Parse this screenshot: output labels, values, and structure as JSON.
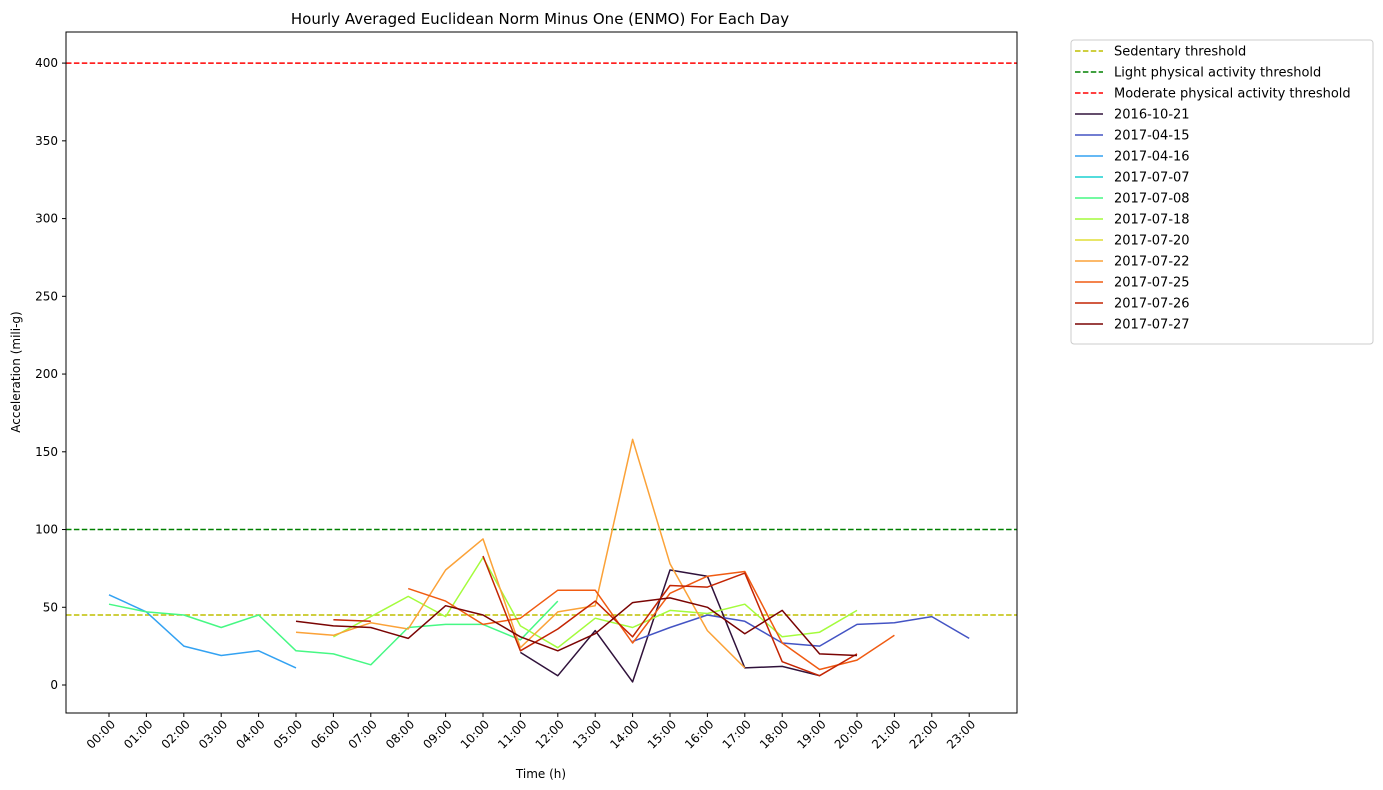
{
  "chart_data": {
    "type": "line",
    "title": "Hourly Averaged Euclidean Norm Minus One (ENMO) For Each Day",
    "xlabel": "Time (h)",
    "ylabel": "Acceleration (mili-g)",
    "ylim": [
      -18,
      420
    ],
    "yticks": [
      0,
      50,
      100,
      150,
      200,
      250,
      300,
      350,
      400
    ],
    "categories": [
      "00:00",
      "01:00",
      "02:00",
      "03:00",
      "04:00",
      "05:00",
      "06:00",
      "07:00",
      "08:00",
      "09:00",
      "10:00",
      "11:00",
      "12:00",
      "13:00",
      "14:00",
      "15:00",
      "16:00",
      "17:00",
      "18:00",
      "19:00",
      "20:00",
      "21:00",
      "22:00",
      "23:00"
    ],
    "grid": false,
    "legend_position": "outside-top-right",
    "thresholds": [
      {
        "name": "Sedentary threshold",
        "value": 45,
        "color": "#bfbf00"
      },
      {
        "name": "Light physical activity threshold",
        "value": 100,
        "color": "#008000"
      },
      {
        "name": "Moderate physical activity threshold",
        "value": 400,
        "color": "#ff0000"
      }
    ],
    "series": [
      {
        "name": "2016-10-21",
        "color": "#30123b",
        "values": [
          null,
          null,
          null,
          null,
          null,
          null,
          null,
          null,
          null,
          null,
          null,
          21,
          6,
          35,
          2,
          74,
          70,
          11,
          12,
          6,
          null,
          null,
          null,
          null
        ]
      },
      {
        "name": "2017-04-15",
        "color": "#4454c4",
        "values": [
          null,
          null,
          null,
          null,
          null,
          null,
          null,
          null,
          null,
          null,
          null,
          null,
          null,
          null,
          28,
          37,
          45,
          41,
          27,
          25,
          39,
          40,
          44,
          30
        ]
      },
      {
        "name": "2017-04-16",
        "color": "#33a2f2",
        "values": [
          58,
          47,
          25,
          19,
          22,
          11,
          null,
          null,
          null,
          null,
          null,
          null,
          null,
          null,
          null,
          null,
          null,
          null,
          null,
          null,
          null,
          null,
          null,
          null
        ]
      },
      {
        "name": "2017-07-07",
        "color": "#1ad0d0",
        "values": [
          null,
          null,
          null,
          null,
          null,
          null,
          null,
          null,
          null,
          null,
          null,
          null,
          null,
          null,
          null,
          null,
          null,
          null,
          null,
          null,
          null,
          null,
          null,
          null
        ]
      },
      {
        "name": "2017-07-08",
        "color": "#46f884",
        "values": [
          52,
          47,
          45,
          37,
          45,
          22,
          20,
          13,
          37,
          39,
          39,
          29,
          54,
          null,
          null,
          null,
          null,
          null,
          null,
          null,
          null,
          null,
          null,
          null
        ]
      },
      {
        "name": "2017-07-18",
        "color": "#a4fc3c",
        "values": [
          null,
          null,
          null,
          null,
          null,
          null,
          31,
          44,
          57,
          44,
          82,
          38,
          24,
          43,
          37,
          48,
          46,
          52,
          31,
          34,
          48,
          null,
          null,
          null
        ]
      },
      {
        "name": "2017-07-20",
        "color": "#e1dd37",
        "values": [
          null,
          null,
          null,
          null,
          null,
          null,
          null,
          null,
          null,
          null,
          null,
          null,
          null,
          null,
          null,
          null,
          null,
          null,
          null,
          null,
          null,
          null,
          null,
          null
        ]
      },
      {
        "name": "2017-07-22",
        "color": "#fba238",
        "values": [
          null,
          null,
          null,
          null,
          null,
          34,
          32,
          40,
          36,
          74,
          94,
          24,
          47,
          51,
          158,
          78,
          35,
          11,
          null,
          null,
          null,
          null,
          null,
          null
        ]
      },
      {
        "name": "2017-07-25",
        "color": "#f05b12",
        "values": [
          null,
          null,
          null,
          null,
          null,
          null,
          null,
          null,
          62,
          54,
          39,
          43,
          61,
          61,
          27,
          59,
          70,
          73,
          27,
          10,
          16,
          32,
          null,
          null
        ]
      },
      {
        "name": "2017-07-26",
        "color": "#c42503",
        "values": [
          null,
          null,
          null,
          null,
          null,
          null,
          42,
          41,
          null,
          null,
          83,
          22,
          36,
          54,
          31,
          64,
          63,
          72,
          15,
          6,
          20,
          null,
          null,
          null
        ]
      },
      {
        "name": "2017-07-27",
        "color": "#7a0403",
        "values": [
          null,
          null,
          null,
          null,
          null,
          41,
          38,
          37,
          30,
          51,
          45,
          31,
          22,
          33,
          53,
          56,
          50,
          33,
          48,
          20,
          19,
          null,
          null,
          null
        ]
      }
    ]
  }
}
